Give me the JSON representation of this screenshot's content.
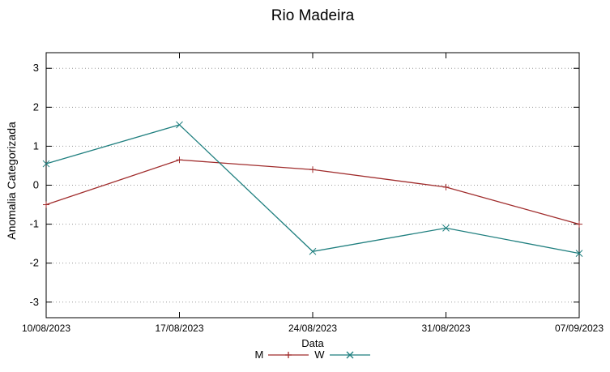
{
  "chart_data": {
    "type": "line",
    "title": "Rio Madeira",
    "xlabel": "Data",
    "ylabel": "Anomalia Categorizada",
    "categories": [
      "10/08/2023",
      "17/08/2023",
      "24/08/2023",
      "31/08/2023",
      "07/09/2023"
    ],
    "series": [
      {
        "name": "M",
        "color": "#a02c2c",
        "marker": "plus",
        "values": [
          -0.5,
          0.65,
          0.4,
          -0.05,
          -1.0
        ]
      },
      {
        "name": "W",
        "color": "#1f7f7f",
        "marker": "x",
        "values": [
          0.55,
          1.55,
          -1.7,
          -1.1,
          -1.75
        ]
      }
    ],
    "yticks": [
      -3,
      -2,
      -1,
      0,
      1,
      2,
      3
    ],
    "ylim": [
      -3.4,
      3.4
    ],
    "grid": "horizontal-dotted",
    "grid_color": "#9a9a9a",
    "axis_color": "#000000",
    "legend_position": "bottom-center"
  }
}
